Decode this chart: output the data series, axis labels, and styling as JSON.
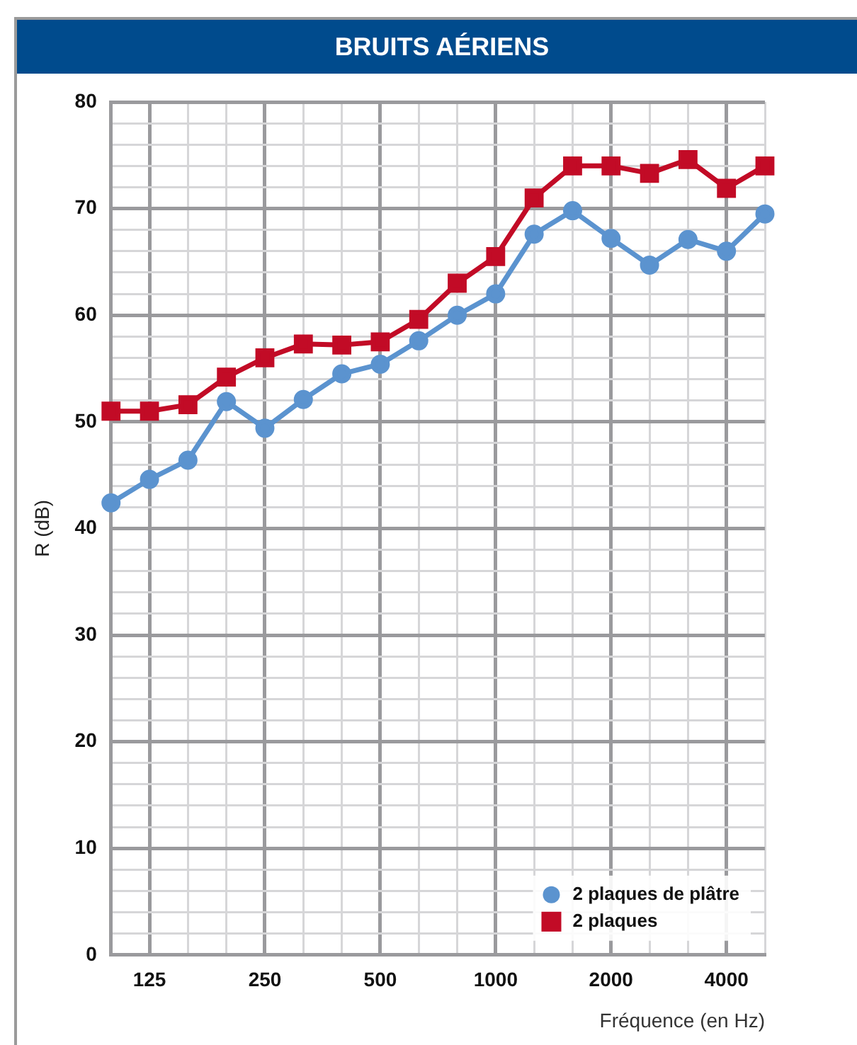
{
  "chart_data": {
    "type": "line",
    "title": "BRUITS AÉRIENS",
    "xlabel": "Fréquence (en Hz)",
    "ylabel": "R (dB)",
    "categories": [
      null,
      "125",
      null,
      null,
      "250",
      null,
      null,
      "500",
      null,
      null,
      "1000",
      null,
      null,
      "2000",
      null,
      null,
      "4000",
      null
    ],
    "series": [
      {
        "name": "2 plaques de plâtre",
        "color": "#5b93cf",
        "marker": "circle",
        "values": [
          42.4,
          44.6,
          46.4,
          51.9,
          49.4,
          52.1,
          54.5,
          55.4,
          57.6,
          60.0,
          62.0,
          67.6,
          69.8,
          67.2,
          64.7,
          67.1,
          66.0,
          69.5
        ]
      },
      {
        "name": "2 plaques",
        "color": "#c20b26",
        "marker": "square",
        "values": [
          51.0,
          51.0,
          51.6,
          54.2,
          56.0,
          57.3,
          57.2,
          57.5,
          59.6,
          63.0,
          65.5,
          71.0,
          74.0,
          74.0,
          73.3,
          74.6,
          71.9,
          74.0
        ]
      }
    ],
    "ylim": [
      0,
      80
    ],
    "yticks": [
      0,
      {
        "value": 2,
        "label": null
      },
      {
        "value": 4,
        "label": null
      },
      {
        "value": 6,
        "label": null
      },
      {
        "value": 8,
        "label": null
      },
      10,
      {
        "value": 12,
        "label": null
      },
      {
        "value": 14,
        "label": null
      },
      {
        "value": 16,
        "label": null
      },
      {
        "value": 18,
        "label": null
      },
      20,
      {
        "value": 22,
        "label": null
      },
      {
        "value": 24,
        "label": null
      },
      {
        "value": 26,
        "label": null
      },
      {
        "value": 28,
        "label": null
      },
      30,
      {
        "value": 32,
        "label": null
      },
      {
        "value": 34,
        "label": null
      },
      {
        "value": 36,
        "label": null
      },
      {
        "value": 38,
        "label": null
      },
      40,
      {
        "value": 42,
        "label": null
      },
      {
        "value": 44,
        "label": null
      },
      {
        "value": 46,
        "label": null
      },
      {
        "value": 48,
        "label": null
      },
      50,
      {
        "value": 52,
        "label": null
      },
      {
        "value": 54,
        "label": null
      },
      {
        "value": 56,
        "label": null
      },
      {
        "value": 58,
        "label": null
      },
      60,
      {
        "value": 62,
        "label": null
      },
      {
        "value": 64,
        "label": null
      },
      {
        "value": 66,
        "label": null
      },
      {
        "value": 68,
        "label": null
      },
      70,
      {
        "value": 72,
        "label": null
      },
      {
        "value": 74,
        "label": null
      },
      {
        "value": 76,
        "label": null
      },
      {
        "value": 78,
        "label": null
      },
      80
    ],
    "grid": true,
    "legend": "bottom right",
    "line_style": "solid"
  }
}
